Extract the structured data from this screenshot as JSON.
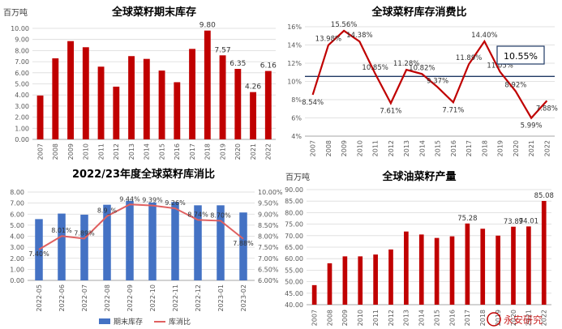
{
  "chart_data": [
    {
      "type": "bar",
      "title": "全球菜籽期末库存",
      "unit_label": "百万吨",
      "categories": [
        "2007",
        "2008",
        "2009",
        "2010",
        "2011",
        "2012",
        "2013",
        "2014",
        "2015",
        "2016",
        "2017",
        "2018",
        "2019",
        "2020",
        "2021",
        "2022"
      ],
      "values": [
        3.95,
        7.3,
        8.85,
        8.3,
        6.55,
        4.75,
        7.5,
        7.25,
        6.2,
        5.15,
        8.15,
        9.8,
        7.57,
        6.35,
        4.26,
        6.16
      ],
      "value_labels": [
        "",
        "",
        "",
        "",
        "",
        "",
        "",
        "",
        "",
        "",
        "",
        "9.80",
        "7.57",
        "6.35",
        "4.26",
        "6.16"
      ],
      "ylim": [
        0,
        10
      ],
      "yticks": [
        "0.00",
        "1.00",
        "2.00",
        "3.00",
        "4.00",
        "5.00",
        "6.00",
        "7.00",
        "8.00",
        "9.00",
        "10.00"
      ],
      "colors": {
        "bar": "#c00000"
      }
    },
    {
      "type": "line",
      "title": "全球菜籽库存消费比",
      "categories": [
        "2007",
        "2008",
        "2009",
        "2010",
        "2011",
        "2012",
        "2013",
        "2014",
        "2015",
        "2016",
        "2017",
        "2018",
        "2019",
        "2020",
        "2021",
        "2022"
      ],
      "values": [
        8.54,
        13.98,
        15.56,
        14.38,
        10.85,
        7.61,
        11.28,
        10.82,
        9.37,
        7.71,
        11.89,
        14.4,
        11.05,
        8.92,
        5.99,
        7.88
      ],
      "value_labels": [
        "8.54%",
        "13.98%",
        "15.56%",
        "14.38%",
        "10.85%",
        "7.61%",
        "11.28%",
        "10.82%",
        "9.37%",
        "7.71%",
        "11.89%",
        "14.40%",
        "11.05%",
        "8.92%",
        "5.99%",
        "7.88%"
      ],
      "ylim": [
        4,
        16
      ],
      "yticks": [
        "4%",
        "6%",
        "8%",
        "10%",
        "12%",
        "14%",
        "16%"
      ],
      "reference_value": 10.55,
      "callout": "10.55%",
      "colors": {
        "line": "#c00000",
        "reference": "#1f3864"
      }
    },
    {
      "type": "bar+line",
      "title": "2022/23年度全球菜籽库消比",
      "categories": [
        "2022-05",
        "2022-06",
        "2022-07",
        "2022-08",
        "2022-09",
        "2022-10",
        "2022-11",
        "2022-12",
        "2023-01",
        "2023-02"
      ],
      "series": [
        {
          "name": "期末库存",
          "type": "bar",
          "axis": "left",
          "values": [
            5.55,
            6.05,
            5.95,
            6.85,
            7.2,
            7.05,
            7.1,
            6.8,
            6.8,
            6.15
          ]
        },
        {
          "name": "库消比",
          "type": "line",
          "axis": "right",
          "values": [
            7.4,
            8.01,
            7.89,
            8.91,
            9.44,
            9.39,
            9.26,
            8.74,
            8.7,
            7.88
          ],
          "value_labels": [
            "7.40%",
            "8.01%",
            "7.89%",
            "8.9_%",
            "9.44%",
            "9.39%",
            "9.26%",
            "8.74%",
            "8.70%",
            "7.88%"
          ]
        }
      ],
      "value_labels": [
        "7.40%",
        "8.01%",
        "7.89%",
        "8.9_%",
        "9.44%",
        "9.39%",
        "9.26%",
        "8.74%",
        "8.70%",
        "7.88%"
      ],
      "ylim_left": [
        0,
        8
      ],
      "yticks_left": [
        "0.00",
        "1.00",
        "2.00",
        "3.00",
        "4.00",
        "5.00",
        "6.00",
        "7.00",
        "8.00"
      ],
      "ylim_right": [
        6,
        10
      ],
      "yticks_right": [
        "6.00%",
        "6.50%",
        "7.00%",
        "7.50%",
        "8.00%",
        "8.50%",
        "9.00%",
        "9.50%",
        "10.00%"
      ],
      "legend": {
        "bar": "期末库存",
        "line": "库消比",
        "position": "bottom"
      },
      "colors": {
        "bar": "#4472c4",
        "line": "#e06060"
      }
    },
    {
      "type": "bar",
      "title": "全球油菜籽产量",
      "unit_label": "百万吨",
      "categories": [
        "2007",
        "2008",
        "2009",
        "2010",
        "2011",
        "2012",
        "2013",
        "2014",
        "2015",
        "2016",
        "2017",
        "2018",
        "2019",
        "2020",
        "2021",
        "2022"
      ],
      "values": [
        48.5,
        58.0,
        61.0,
        61.0,
        61.8,
        64.0,
        71.8,
        70.5,
        69.0,
        69.7,
        75.28,
        73.0,
        70.0,
        73.89,
        74.01,
        85.08
      ],
      "value_labels": [
        "",
        "",
        "",
        "",
        "",
        "",
        "",
        "",
        "",
        "",
        "75.28",
        "",
        "",
        "73.89",
        "74.01",
        "85.08"
      ],
      "ylim": [
        40,
        90
      ],
      "yticks": [
        "40.00",
        "45.00",
        "50.00",
        "55.00",
        "60.00",
        "65.00",
        "70.00",
        "75.00",
        "80.00",
        "85.00",
        "90.00"
      ],
      "colors": {
        "bar": "#c00000"
      }
    }
  ],
  "watermark": "永安研究",
  "colors": {
    "axis_text": "#595959",
    "grid": "#d9d9d9"
  }
}
